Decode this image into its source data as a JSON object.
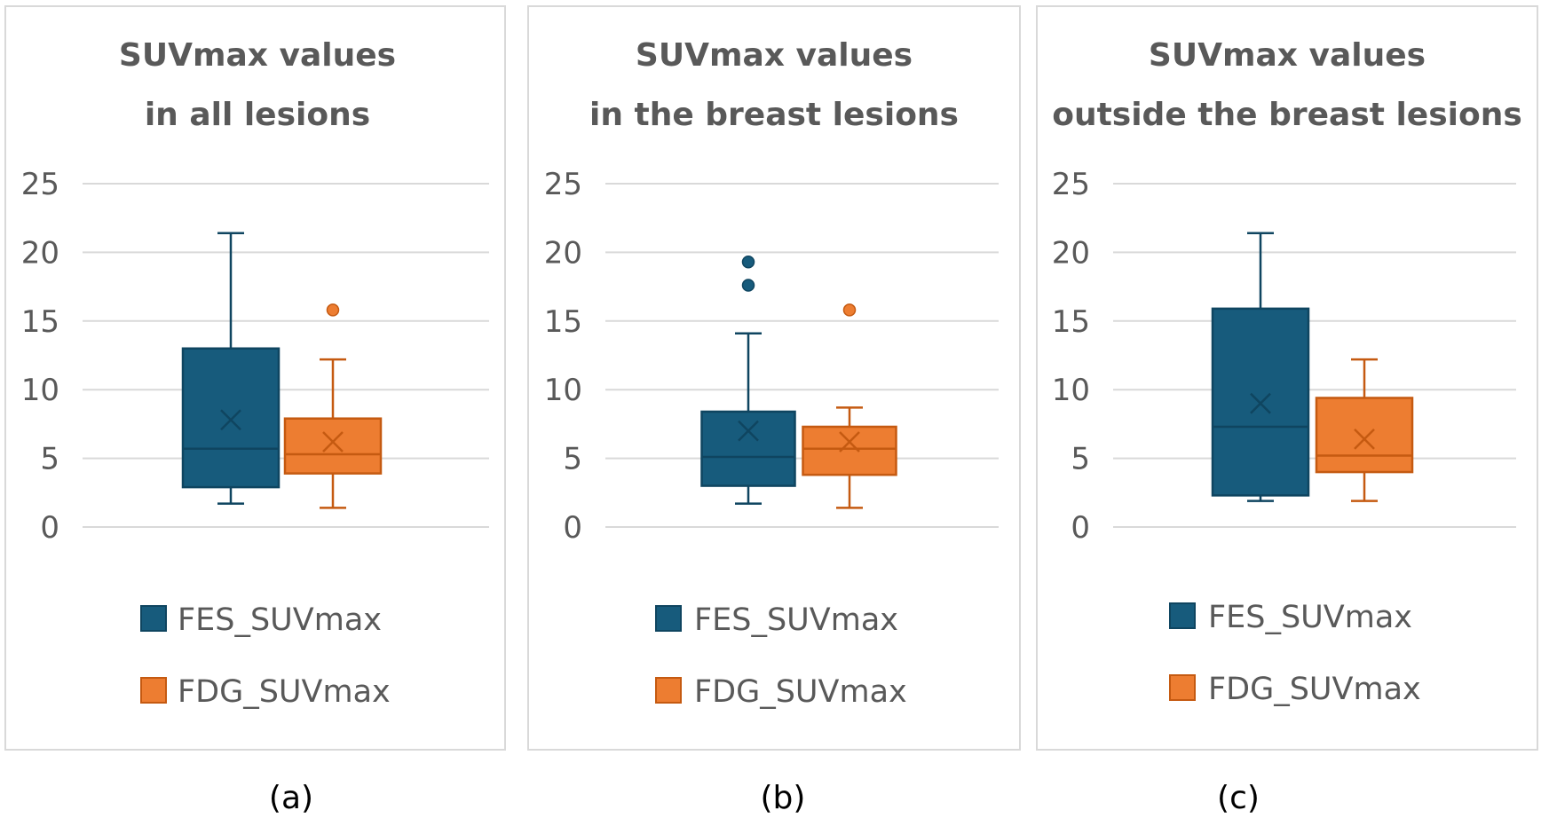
{
  "colors": {
    "FES_SUVmax": "#175B7C",
    "FES_SUVmax_stroke": "#0F4560",
    "FDG_SUVmax": "#ED7D31",
    "FDG_SUVmax_stroke": "#C55A11"
  },
  "chart_data": [
    {
      "type": "box",
      "title": "SUVmax values",
      "subtitle": "in all lesions",
      "caption": "(a)",
      "ylim": [
        0,
        25
      ],
      "yticks": [
        "0",
        "5",
        "10",
        "15",
        "20",
        "25"
      ],
      "grid": true,
      "legend_position": "bottom",
      "series": [
        {
          "name": "FES_SUVmax",
          "whisker_low": 1.7,
          "q1": 2.9,
          "median": 5.7,
          "q3": 13.0,
          "whisker_high": 21.4,
          "mean": 7.8,
          "outliers": []
        },
        {
          "name": "FDG_SUVmax",
          "whisker_low": 1.4,
          "q1": 3.9,
          "median": 5.3,
          "q3": 7.9,
          "whisker_high": 12.2,
          "mean": 6.2,
          "outliers": [
            15.8
          ]
        }
      ]
    },
    {
      "type": "box",
      "title": "SUVmax values",
      "subtitle": "in the breast lesions",
      "caption": "(b)",
      "ylim": [
        0,
        25
      ],
      "yticks": [
        "0",
        "5",
        "10",
        "15",
        "20",
        "25"
      ],
      "grid": true,
      "legend_position": "bottom",
      "series": [
        {
          "name": "FES_SUVmax",
          "whisker_low": 1.7,
          "q1": 3.0,
          "median": 5.1,
          "q3": 8.4,
          "whisker_high": 14.1,
          "mean": 7.0,
          "outliers": [
            17.6,
            19.3
          ]
        },
        {
          "name": "FDG_SUVmax",
          "whisker_low": 1.4,
          "q1": 3.8,
          "median": 5.7,
          "q3": 7.3,
          "whisker_high": 8.7,
          "mean": 6.2,
          "outliers": [
            15.8
          ]
        }
      ]
    },
    {
      "type": "box",
      "title": "SUVmax values",
      "subtitle": "outside the breast lesions",
      "caption": "(c)",
      "ylim": [
        0,
        25
      ],
      "yticks": [
        "0",
        "5",
        "10",
        "15",
        "20",
        "25"
      ],
      "grid": true,
      "legend_position": "bottom",
      "series": [
        {
          "name": "FES_SUVmax",
          "whisker_low": 1.9,
          "q1": 2.3,
          "median": 7.3,
          "q3": 15.9,
          "whisker_high": 21.4,
          "mean": 9.0,
          "outliers": []
        },
        {
          "name": "FDG_SUVmax",
          "whisker_low": 1.9,
          "q1": 4.0,
          "median": 5.2,
          "q3": 9.4,
          "whisker_high": 12.2,
          "mean": 6.4,
          "outliers": []
        }
      ]
    }
  ]
}
